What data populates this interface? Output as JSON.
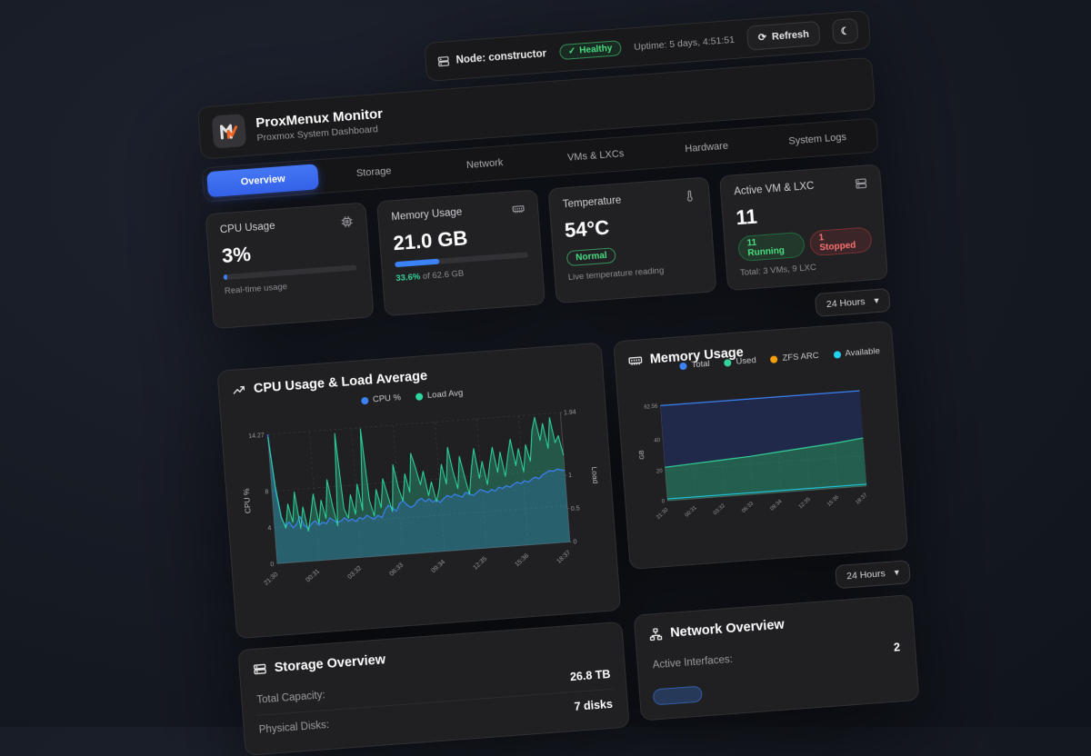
{
  "topbar": {
    "node_label": "Node: constructor",
    "health": "Healthy",
    "uptime": "Uptime: 5 days, 4:51:51",
    "refresh_label": "Refresh"
  },
  "icons": {
    "refresh": "⟳",
    "moon": "☾",
    "chevron_down": "▾",
    "check": "✓"
  },
  "header": {
    "title": "ProxMenux Monitor",
    "subtitle": "Proxmox System Dashboard"
  },
  "tabs": [
    {
      "label": "Overview"
    },
    {
      "label": "Storage"
    },
    {
      "label": "Network"
    },
    {
      "label": "VMs & LXCs"
    },
    {
      "label": "Hardware"
    },
    {
      "label": "System Logs"
    }
  ],
  "time_range": {
    "selected": "24 Hours"
  },
  "stats": {
    "cpu": {
      "label": "CPU Usage",
      "value": "3%",
      "percent": 3,
      "caption": "Real-time usage"
    },
    "memory": {
      "label": "Memory Usage",
      "value": "21.0 GB",
      "percent": 33.6,
      "caption_percent": "33.6%",
      "caption_rest": " of 62.6 GB"
    },
    "temperature": {
      "label": "Temperature",
      "value": "54°C",
      "status": "Normal",
      "caption": "Live temperature reading"
    },
    "vms": {
      "label": "Active VM & LXC",
      "value": "11",
      "running": "11 Running",
      "stopped": "1 Stopped",
      "caption": "Total: 3 VMs, 9 LXC"
    }
  },
  "storage": {
    "title": "Storage Overview",
    "rows": [
      {
        "label": "Total Capacity:",
        "value": "26.8 TB"
      },
      {
        "label": "Physical Disks:",
        "value": "7 disks"
      }
    ]
  },
  "network": {
    "title": "Network Overview",
    "rows": [
      {
        "label": "Active Interfaces:",
        "value": "2"
      }
    ]
  },
  "chart_data": [
    {
      "type": "line",
      "title": "CPU Usage & Load Average",
      "x_labels": [
        "21:30",
        "00:31",
        "03:32",
        "06:33",
        "09:34",
        "12:35",
        "15:36",
        "18:37"
      ],
      "y_left": {
        "label": "CPU %",
        "ticks": [
          0,
          4,
          8,
          14.27
        ],
        "max": 14.27
      },
      "y_right": {
        "label": "Load",
        "ticks": [
          0,
          0.5,
          1,
          1.94
        ],
        "max": 1.94
      },
      "grid": true,
      "legend_position": "top",
      "series": [
        {
          "name": "CPU %",
          "color": "#3b82f6",
          "axis": "left",
          "fill": "rgba(59,130,246,0.22)",
          "values": [
            14.27,
            8.0,
            5.0,
            4.0,
            4.5,
            3.8,
            4.2,
            5.0,
            4.0,
            3.6,
            4.1,
            4.4,
            3.9,
            4.2,
            4.0,
            4.6,
            4.3,
            4.0,
            4.2,
            4.5,
            4.1,
            4.3,
            4.0,
            4.4,
            4.2,
            4.6,
            4.3,
            4.1,
            4.5,
            4.2,
            5.0,
            5.5,
            5.2,
            4.8,
            5.6,
            5.9,
            5.4,
            5.1,
            5.3,
            5.8,
            6.0,
            5.6,
            5.9,
            5.5,
            5.7,
            5.4,
            5.8,
            6.1,
            5.9,
            6.2,
            6.0,
            5.8,
            6.3,
            6.1,
            5.9,
            6.2,
            6.5,
            6.3,
            6.1,
            6.4,
            6.2,
            6.6,
            6.4,
            6.7,
            6.5,
            6.8,
            7.0,
            6.8,
            7.1,
            6.9,
            7.2,
            7.4,
            7.2,
            7.6,
            7.8,
            8.0,
            7.9,
            8.1,
            8.0,
            7.9
          ]
        },
        {
          "name": "Load Avg",
          "color": "#2dd79f",
          "axis": "right",
          "fill": "rgba(45,215,159,0.30)",
          "values": [
            1.9,
            1.15,
            0.7,
            0.52,
            0.88,
            0.6,
            1.05,
            0.5,
            0.82,
            0.45,
            0.7,
            1.0,
            0.55,
            0.9,
            0.62,
            1.2,
            0.8,
            0.5,
            1.88,
            0.75,
            0.6,
            0.95,
            0.65,
            1.1,
            0.7,
            1.92,
            0.85,
            0.6,
            1.0,
            0.72,
            1.15,
            0.9,
            0.65,
            1.35,
            1.0,
            0.8,
            1.2,
            0.92,
            1.5,
            1.28,
            1.02,
            1.22,
            0.85,
            1.05,
            0.75,
            0.95,
            1.3,
            1.0,
            1.55,
            1.18,
            0.92,
            1.4,
            1.1,
            0.82,
            1.2,
            1.5,
            1.05,
            1.3,
            0.95,
            1.25,
            1.5,
            1.12,
            1.42,
            1.05,
            1.35,
            1.6,
            1.2,
            1.45,
            1.1,
            1.5,
            1.25,
            1.7,
            1.9,
            1.55,
            1.8,
            1.42,
            1.88,
            1.5,
            1.6,
            1.3
          ]
        }
      ]
    },
    {
      "type": "area",
      "title": "Memory Usage",
      "x_labels": [
        "21:30",
        "00:31",
        "03:32",
        "06:33",
        "09:34",
        "12:35",
        "15:36",
        "18:37"
      ],
      "y": {
        "label": "GB",
        "ticks": [
          0,
          20,
          40,
          62.56
        ],
        "max": 62.56
      },
      "grid": true,
      "legend_position": "top",
      "series": [
        {
          "name": "Total",
          "color": "#3b82f6",
          "values": [
            62.56,
            62.56,
            62.56,
            62.56,
            62.56,
            62.56,
            62.56,
            62.56
          ]
        },
        {
          "name": "Used",
          "color": "#34d399",
          "values": [
            22,
            23,
            24,
            25,
            26.5,
            28,
            29.5,
            31.5
          ]
        },
        {
          "name": "ZFS ARC",
          "color": "#f59e0b",
          "values": [
            1.2,
            1.2,
            1.2,
            1.2,
            1.2,
            1.2,
            1.2,
            1.2
          ]
        },
        {
          "name": "Available",
          "color": "#22d3ee",
          "values": [
            39.4,
            38.4,
            37.4,
            36.4,
            34.9,
            33.4,
            31.9,
            29.9
          ]
        }
      ]
    }
  ]
}
